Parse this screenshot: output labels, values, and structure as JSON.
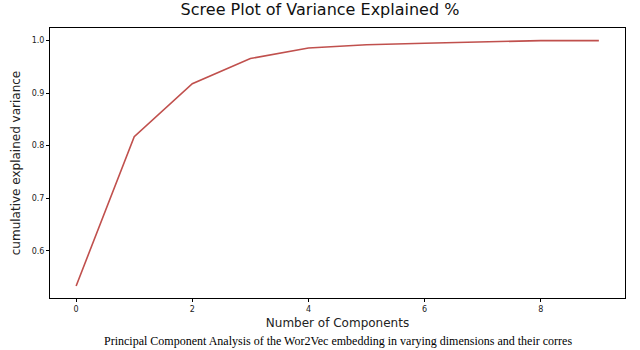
{
  "chart_data": {
    "type": "line",
    "title": "Scree Plot of Variance Explained %",
    "x_label": "Number of Components",
    "y_label": "cumulative explained variance",
    "caption": "Principal Component Analysis of the Wor2Vec embedding in varying dimensions and their corres",
    "x": [
      0,
      1,
      2,
      3,
      4,
      5,
      6,
      7,
      8,
      9
    ],
    "values": [
      0.533,
      0.817,
      0.918,
      0.966,
      0.986,
      0.992,
      0.995,
      0.998,
      1.0,
      1.0
    ],
    "color": "#c0504d",
    "xlim": [
      -0.45,
      9.45
    ],
    "xticks": [
      0,
      2,
      4,
      6,
      8
    ],
    "ylim": [
      0.51,
      1.024
    ],
    "yticks": [
      0.6,
      0.7,
      0.8,
      0.9,
      {
        "value": 1,
        "label": "1.0"
      }
    ],
    "grid": false
  }
}
